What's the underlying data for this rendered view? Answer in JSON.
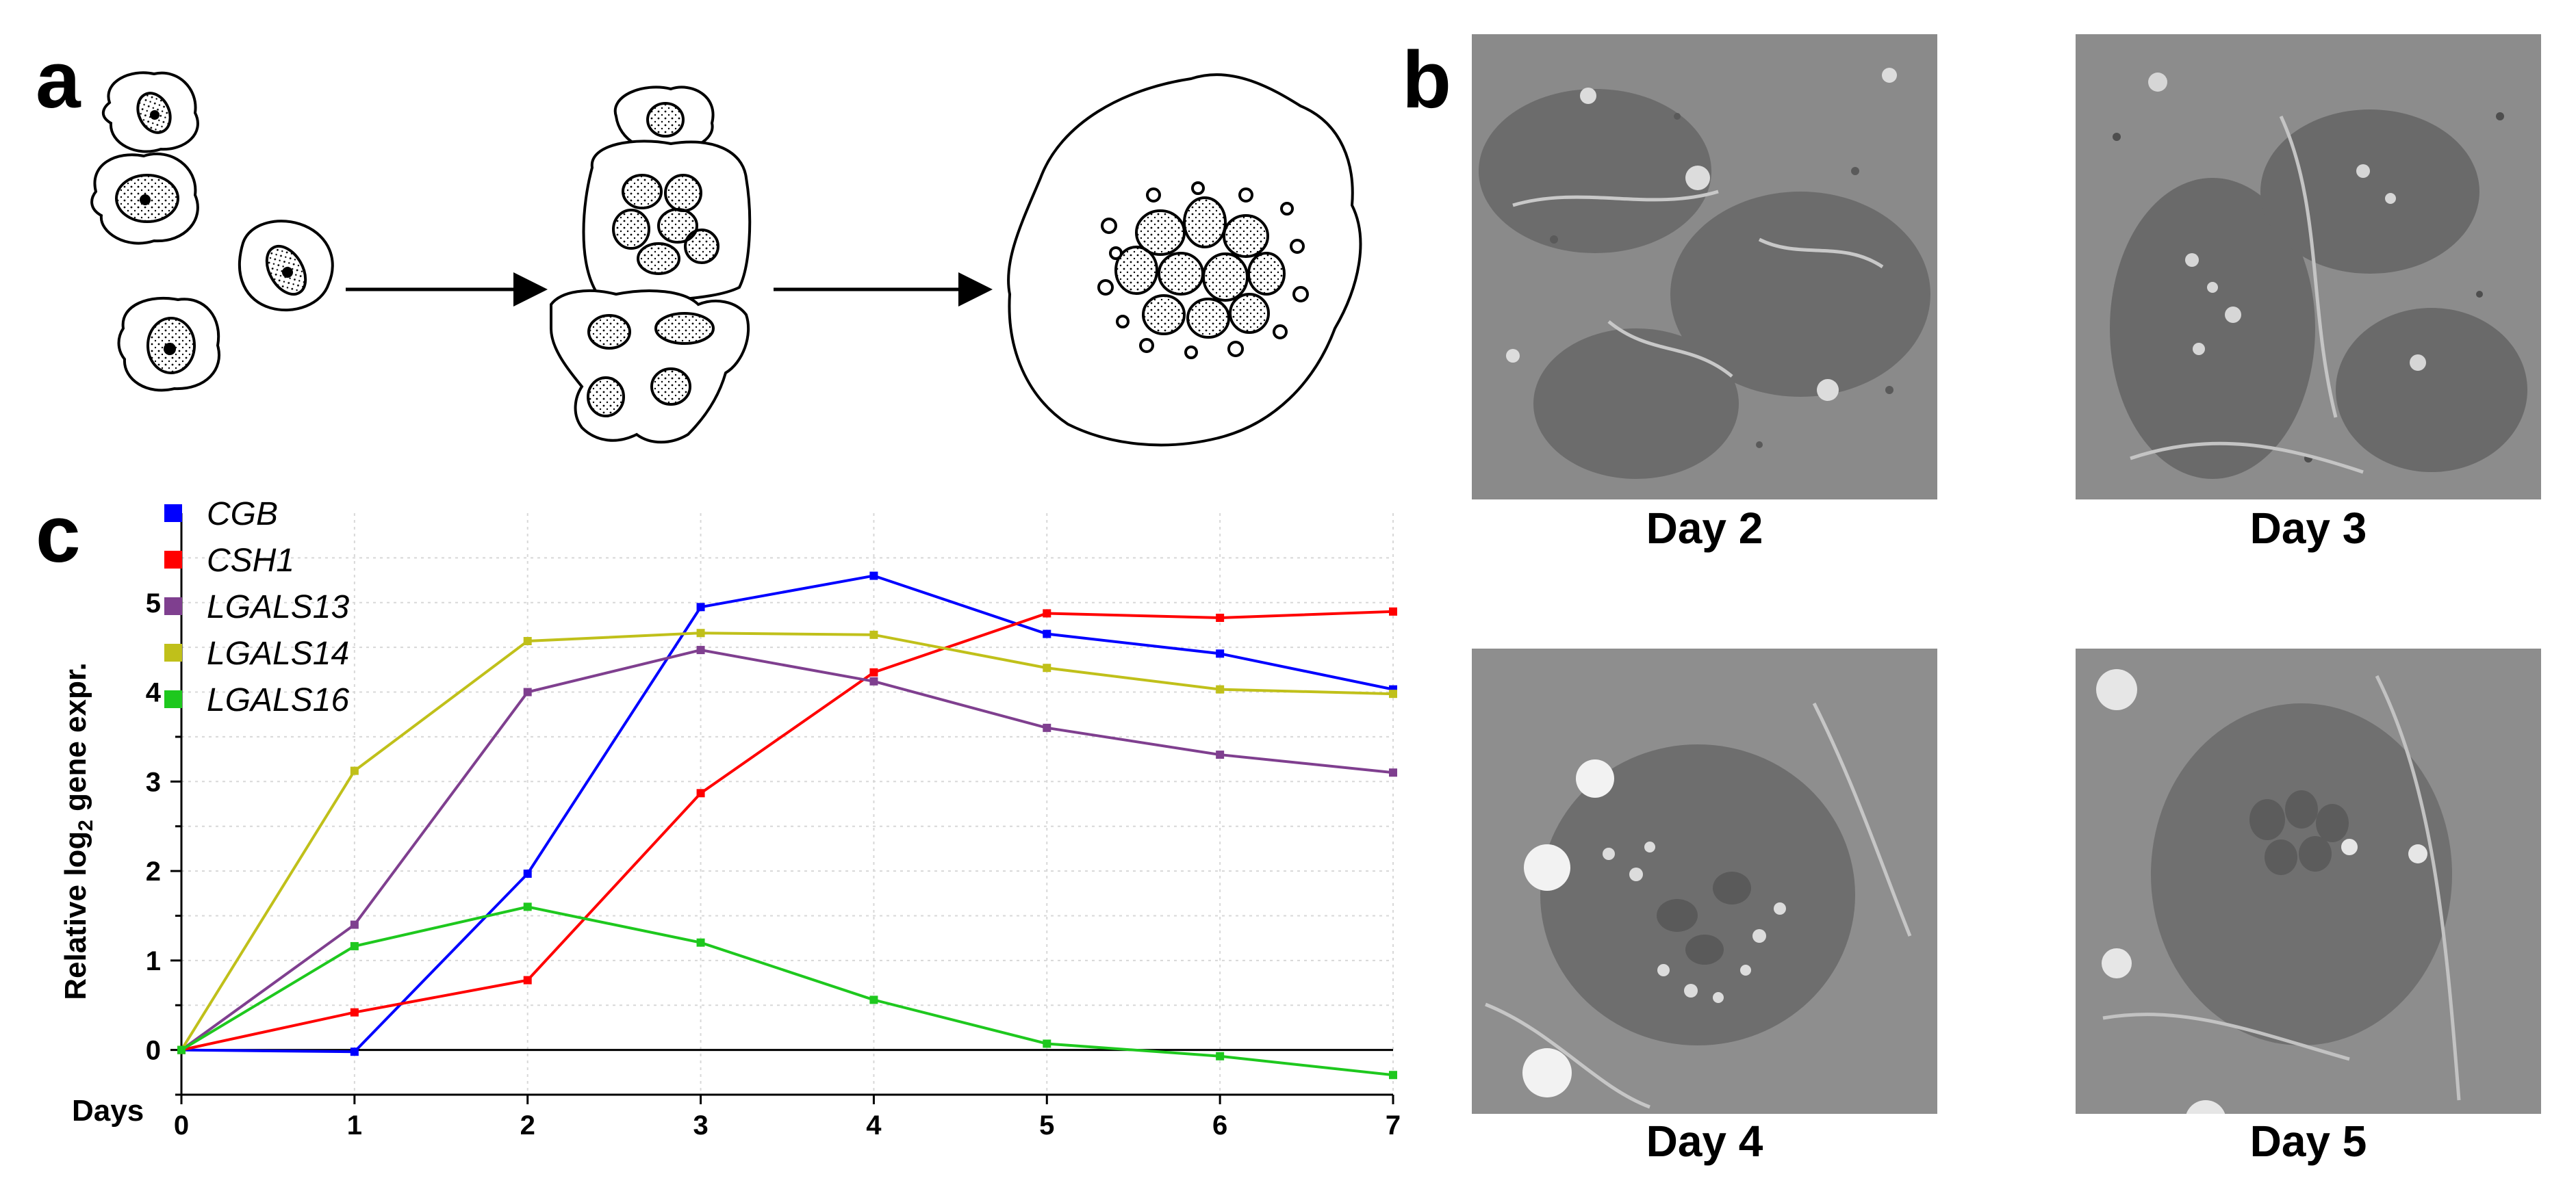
{
  "panels": {
    "a": "a",
    "b": "b",
    "c": "c"
  },
  "micrographs": [
    {
      "caption": "Day 2"
    },
    {
      "caption": "Day 3"
    },
    {
      "caption": "Day 4"
    },
    {
      "caption": "Day 5"
    }
  ],
  "chart_data": {
    "type": "line",
    "xlabel": "Days",
    "ylabel": "Relative log",
    "ylabel_sub": "2",
    "ylabel_tail": " gene expr.",
    "x": [
      0,
      1,
      2,
      3,
      4,
      5,
      6,
      7
    ],
    "xlim": [
      0,
      7
    ],
    "ylim": [
      -0.5,
      6
    ],
    "x_ticks": [
      "0",
      "1",
      "2",
      "3",
      "4",
      "5",
      "6",
      "7"
    ],
    "y_ticks": [
      "0",
      "1",
      "2",
      "3",
      "4",
      "5"
    ],
    "grid": true,
    "legend_position": "top-left",
    "series": [
      {
        "name": "CGB",
        "color": "#0000ff",
        "values": [
          0,
          -0.02,
          1.97,
          4.95,
          5.3,
          4.65,
          4.43,
          4.03
        ]
      },
      {
        "name": "CSH1",
        "color": "#ff0000",
        "values": [
          0,
          0.42,
          0.78,
          2.87,
          4.22,
          4.88,
          4.83,
          4.9
        ]
      },
      {
        "name": "LGALS13",
        "color": "#7f3f8f",
        "values": [
          0,
          1.4,
          4.0,
          4.47,
          4.12,
          3.6,
          3.3,
          3.1
        ]
      },
      {
        "name": "LGALS14",
        "color": "#c0c01a",
        "values": [
          0,
          3.12,
          4.57,
          4.66,
          4.64,
          4.27,
          4.03,
          3.98
        ]
      },
      {
        "name": "LGALS16",
        "color": "#1ec81e",
        "values": [
          0,
          1.16,
          1.6,
          1.2,
          0.56,
          0.07,
          -0.07,
          -0.28
        ]
      }
    ]
  }
}
